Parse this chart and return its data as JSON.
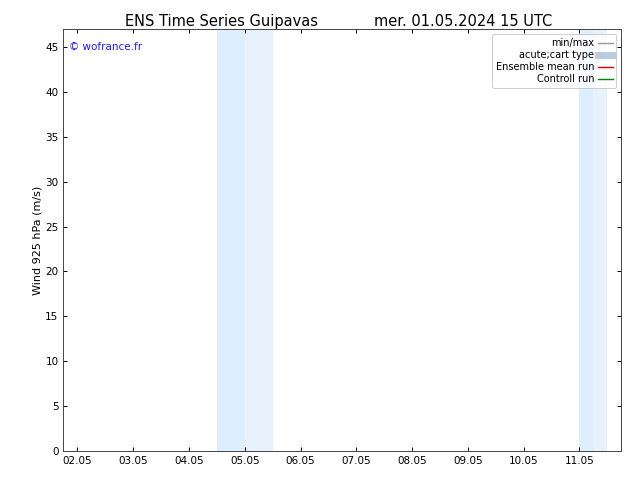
{
  "title_left": "ENS Time Series Guipavas",
  "title_right": "mer. 01.05.2024 15 UTC",
  "ylabel": "Wind 925 hPa (m/s)",
  "watermark": "© wofrance.fr",
  "watermark_color": "#1a1aff",
  "xlim_min": 1.75,
  "xlim_max": 11.75,
  "ylim_min": 0,
  "ylim_max": 47,
  "xticks": [
    2,
    3,
    4,
    5,
    6,
    7,
    8,
    9,
    10,
    11
  ],
  "xtick_labels": [
    "02.05",
    "03.05",
    "04.05",
    "05.05",
    "06.05",
    "07.05",
    "08.05",
    "09.05",
    "10.05",
    "11.05"
  ],
  "yticks": [
    0,
    5,
    10,
    15,
    20,
    25,
    30,
    35,
    40,
    45
  ],
  "shaded_bands": [
    {
      "xmin": 4.5,
      "xmax": 5.0,
      "color": "#ddeeff"
    },
    {
      "xmin": 5.0,
      "xmax": 5.5,
      "color": "#e8f2fc"
    },
    {
      "xmin": 11.0,
      "xmax": 11.25,
      "color": "#ddeeff"
    },
    {
      "xmin": 11.25,
      "xmax": 11.5,
      "color": "#e8f2fc"
    }
  ],
  "legend_entries": [
    {
      "label": "min/max",
      "color": "#999999",
      "linewidth": 1.0,
      "linestyle": "-"
    },
    {
      "label": "acute;cart type",
      "color": "#bbccdd",
      "linewidth": 5,
      "linestyle": "-"
    },
    {
      "label": "Ensemble mean run",
      "color": "#dd0000",
      "linewidth": 1.0,
      "linestyle": "-"
    },
    {
      "label": "Controll run",
      "color": "#008800",
      "linewidth": 1.0,
      "linestyle": "-"
    }
  ],
  "background_color": "#ffffff",
  "plot_bg_color": "#ffffff",
  "tick_fontsize": 7.5,
  "label_fontsize": 8,
  "title_fontsize": 10.5,
  "legend_fontsize": 7
}
